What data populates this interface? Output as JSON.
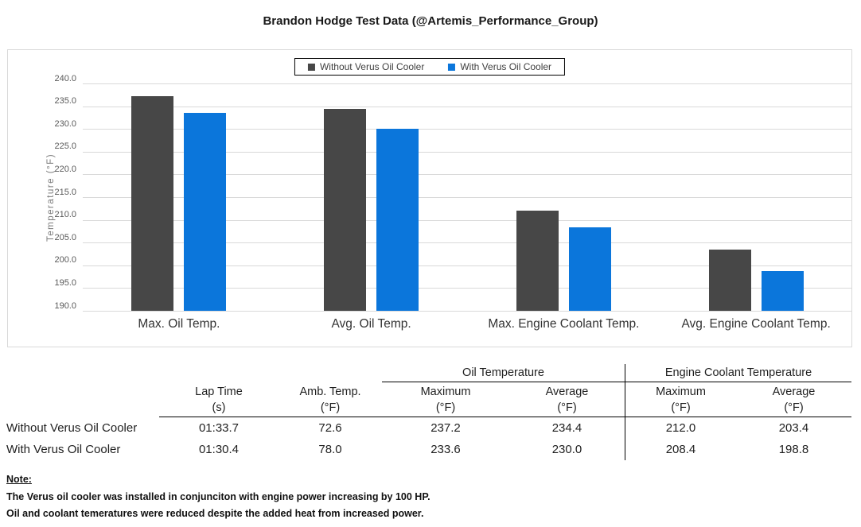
{
  "title": "Brandon Hodge Test Data (@Artemis_Performance_Group)",
  "chart_data": {
    "type": "bar",
    "title": "Brandon Hodge Test Data (@Artemis_Performance_Group)",
    "categories": [
      "Max. Oil Temp.",
      "Avg. Oil Temp.",
      "Max. Engine Coolant Temp.",
      "Avg. Engine Coolant Temp."
    ],
    "series": [
      {
        "name": "Without Verus Oil Cooler",
        "color": "#474747",
        "values": [
          237.2,
          234.4,
          212.0,
          203.4
        ]
      },
      {
        "name": "With Verus Oil Cooler",
        "color": "#0b76db",
        "values": [
          233.6,
          230.0,
          208.4,
          198.8
        ]
      }
    ],
    "xlabel": "",
    "ylabel": "Temperature (°F)",
    "ylim": [
      190,
      240
    ],
    "ytick_step": 5,
    "grid": true,
    "legend_position": "top-center",
    "gridline_color": "#d9d9d9"
  },
  "table": {
    "group_headers": {
      "oil": "Oil Temperature",
      "coolant": "Engine Coolant Temperature"
    },
    "columns": [
      {
        "name": "Lap Time",
        "unit": "(s)"
      },
      {
        "name": "Amb. Temp.",
        "unit": "(°F)"
      },
      {
        "name": "Maximum",
        "unit": "(°F)"
      },
      {
        "name": "Average",
        "unit": "(°F)"
      },
      {
        "name": "Maximum",
        "unit": "(°F)"
      },
      {
        "name": "Average",
        "unit": "(°F)"
      }
    ],
    "rows": [
      {
        "label": "Without Verus Oil Cooler",
        "values": [
          "01:33.7",
          "72.6",
          "237.2",
          "234.4",
          "212.0",
          "203.4"
        ]
      },
      {
        "label": "With Verus Oil Cooler",
        "values": [
          "01:30.4",
          "78.0",
          "233.6",
          "230.0",
          "208.4",
          "198.8"
        ]
      }
    ]
  },
  "note": {
    "heading": "Note:",
    "lines": [
      "The Verus oil cooler was installed in conjunciton with engine power increasing by 100 HP.",
      "Oil and coolant temeratures were reduced despite the added heat from increased power."
    ]
  }
}
